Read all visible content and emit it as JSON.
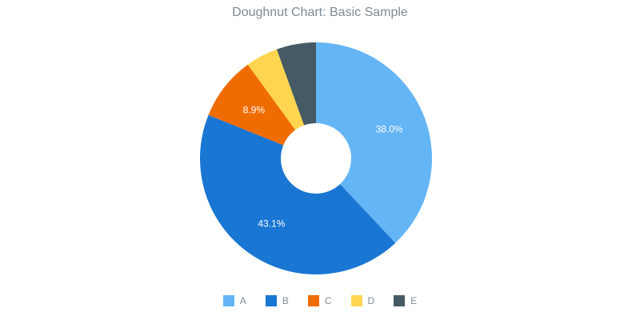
{
  "chart_data": {
    "type": "pie",
    "variant": "doughnut",
    "title": "Doughnut Chart: Basic Sample",
    "categories": [
      "A",
      "B",
      "C",
      "D",
      "E"
    ],
    "values": [
      38.0,
      43.1,
      8.9,
      4.5,
      5.5
    ],
    "value_labels": [
      "38.0%",
      "43.1%",
      "8.9%",
      "",
      ""
    ],
    "colors": [
      "#64b5f6",
      "#1976d2",
      "#ef6c00",
      "#ffd54f",
      "#455a64"
    ],
    "legend_position": "bottom",
    "start": "top, clockwise"
  }
}
